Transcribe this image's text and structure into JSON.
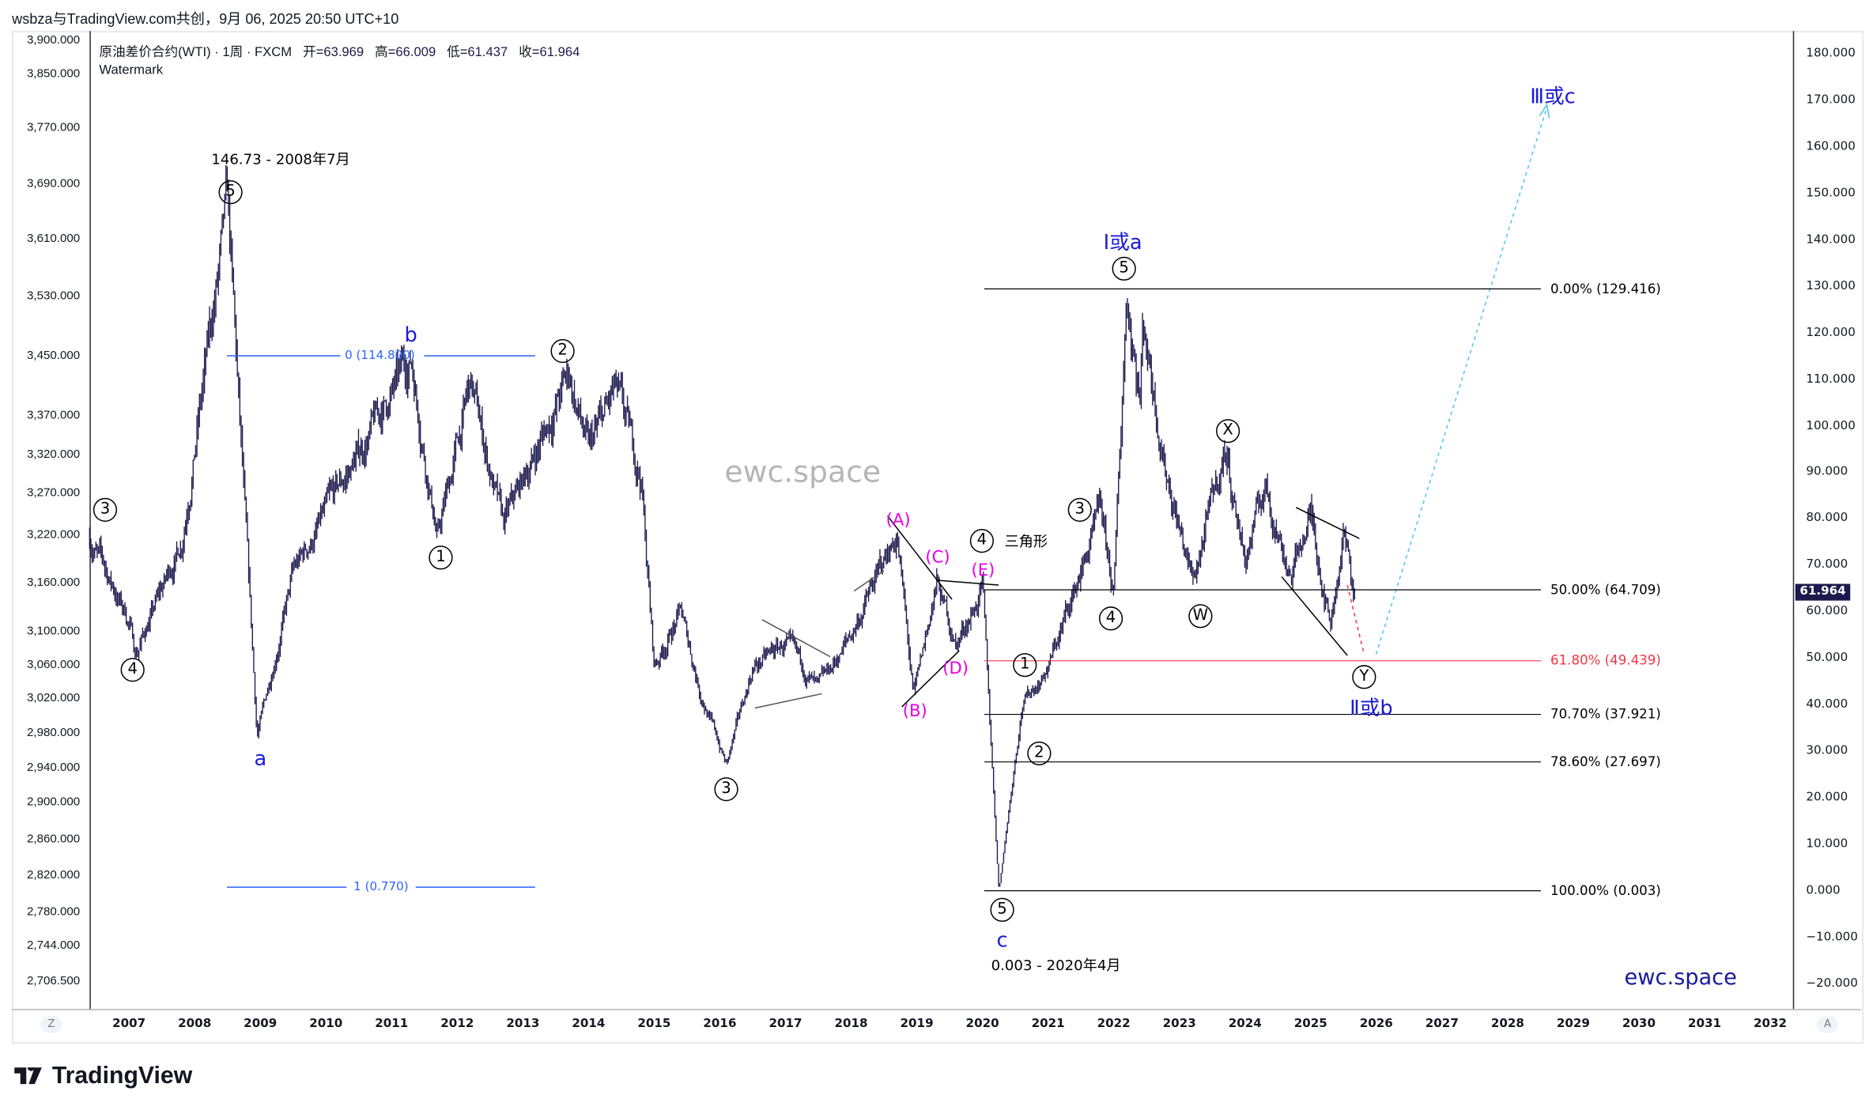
{
  "header": {
    "attribution": "wsbza与TradingView.com共创，9月 06, 2025 20:50 UTC+10"
  },
  "legend": {
    "symbol": "原油差价合约(WTI) · 1周 · FXCM",
    "open_label": "开=",
    "open": "63.969",
    "high_label": "高=",
    "high": "66.009",
    "low_label": "低=",
    "low": "61.437",
    "close_label": "收=",
    "close": "61.964",
    "watermark": "Watermark"
  },
  "left_axis": [
    "3,900.000",
    "3,850.000",
    "3,770.000",
    "3,690.000",
    "3,610.000",
    "3,530.000",
    "3,450.000",
    "3,370.000",
    "3,320.000",
    "3,270.000",
    "3,220.000",
    "3,160.000",
    "3,100.000",
    "3,060.000",
    "3,020.000",
    "2,980.000",
    "2,940.000",
    "2,900.000",
    "2,860.000",
    "2,820.000",
    "2,780.000",
    "2,744.000",
    "2,706.500"
  ],
  "right_axis": [
    "180.000",
    "170.000",
    "160.000",
    "150.000",
    "140.000",
    "130.000",
    "120.000",
    "110.000",
    "100.000",
    "90.000",
    "80.000",
    "70.000",
    "60.000",
    "50.000",
    "40.000",
    "30.000",
    "20.000",
    "10.000",
    "0.000",
    "−10.000",
    "−20.000"
  ],
  "last_price": "61.964",
  "x_axis": [
    "2007",
    "2008",
    "2009",
    "2010",
    "2011",
    "2012",
    "2013",
    "2014",
    "2015",
    "2016",
    "2017",
    "2018",
    "2019",
    "2020",
    "2021",
    "2022",
    "2023",
    "2024",
    "2025",
    "2026",
    "2027",
    "2028",
    "2029",
    "2030",
    "2031",
    "2032"
  ],
  "axis_buttons": {
    "zoom": "Z",
    "auto": "A"
  },
  "colors": {
    "candle": "#1c1a4d",
    "wave_blue": "#1a1adb",
    "wave_magenta": "#e600e6",
    "fib_red": "#f23645",
    "projection_cyan": "#4fc3f7"
  },
  "chart_data": {
    "type": "candlestick",
    "title": "原油差价合约(WTI) · 1周 · FXCM",
    "xlim": [
      2006.4,
      2032.5
    ],
    "ylim": [
      -25,
      185
    ],
    "grid": false,
    "series": [
      {
        "x": [
          2006.4,
          2007.0,
          2007.1,
          2007.8,
          2008.5,
          2008.95,
          2009.5,
          2010.0,
          2011.3,
          2011.7,
          2012.2,
          2012.7,
          2013.7,
          2014.0,
          2014.4,
          2014.8,
          2015.0,
          2015.4,
          2015.7,
          2016.1,
          2016.5,
          2017.0,
          2017.5,
          2018.0,
          2018.7,
          2018.95,
          2019.3,
          2019.6,
          2020.0,
          2020.25,
          2020.6,
          2021.0,
          2021.8,
          2022.0,
          2022.2,
          2022.4,
          2022.45,
          2022.8,
          2023.2,
          2023.7,
          2024.0,
          2024.3,
          2024.7,
          2025.0,
          2025.3,
          2025.5,
          2025.68
        ],
        "y": [
          76,
          58,
          51,
          75,
          146.7,
          33,
          68,
          81,
          114.5,
          76,
          109,
          78,
          111,
          94,
          107,
          89,
          48,
          60,
          43,
          27,
          48,
          53,
          43,
          55,
          77,
          41,
          66,
          53,
          65,
          0.003,
          40,
          48,
          81,
          63,
          129.4,
          107,
          123,
          91,
          66,
          95,
          71,
          87,
          68,
          81,
          58,
          77,
          62
        ]
      }
    ],
    "annotations": {
      "top_2008": "146.73 - 2008年7月",
      "low_2020": "0.003 - 2020年4月"
    }
  },
  "waves": {
    "c3_left": "3",
    "c5_top": "5",
    "c4_2007": "4",
    "a": "a",
    "b": "b",
    "c2": "2",
    "c1": "1",
    "c3": "3",
    "A": "(A)",
    "B": "(B)",
    "C": "(C)",
    "D": "(D)",
    "E": "(E)",
    "c4_tri": "4",
    "tri_label": "三角形",
    "c1_2020": "1",
    "c2_2020": "2",
    "c5_2020": "5",
    "c": "c",
    "c3_2021": "3",
    "c4_2021": "4",
    "wave_Ia": "Ⅰ或a",
    "c5_2022": "5",
    "X": "X",
    "W": "W",
    "Y": "Y",
    "wave_IIb": "Ⅱ或b",
    "wave_IIIc": "Ⅲ或c"
  },
  "fib_blue": {
    "zero": "0 (114.800)",
    "one": "1 (0.770)"
  },
  "fib_levels": [
    {
      "label": "0.00% (129.416)",
      "price": 129.416,
      "color": "#000000"
    },
    {
      "label": "50.00% (64.709)",
      "price": 64.709,
      "color": "#000000"
    },
    {
      "label": "61.80% (49.439)",
      "price": 49.439,
      "color": "#f23645"
    },
    {
      "label": "70.70% (37.921)",
      "price": 37.921,
      "color": "#000000"
    },
    {
      "label": "78.60% (27.697)",
      "price": 27.697,
      "color": "#000000"
    },
    {
      "label": "100.00% (0.003)",
      "price": 0.003,
      "color": "#000000"
    }
  ],
  "watermarks": {
    "center": "ewc.space",
    "corner": "ewc.space"
  },
  "footer": {
    "logo": "TradingView"
  }
}
